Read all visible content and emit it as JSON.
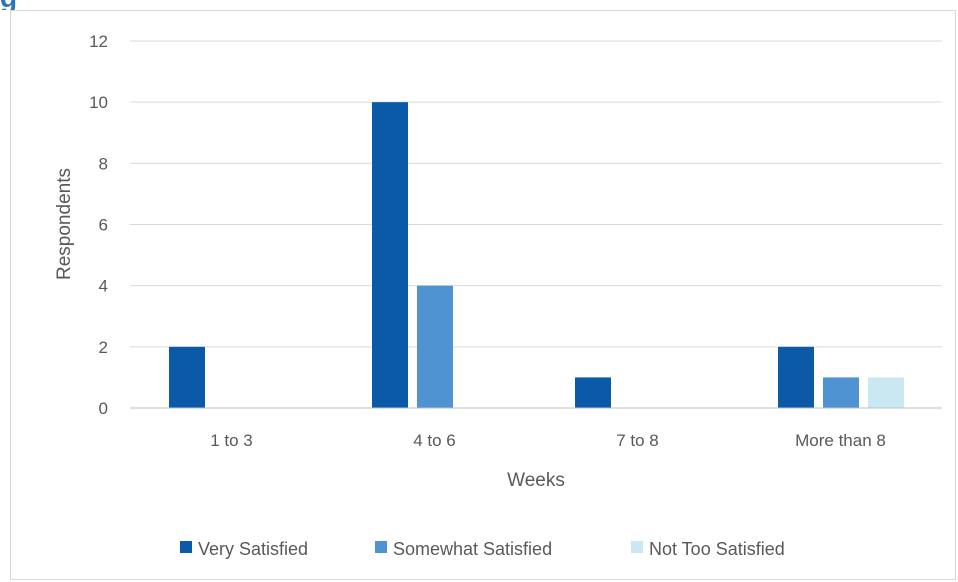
{
  "chart_data": {
    "type": "bar",
    "title": "",
    "xlabel": "Weeks",
    "ylabel": "Respondents",
    "ylim": [
      0,
      12
    ],
    "yticks": [
      0,
      2,
      4,
      6,
      8,
      10,
      12
    ],
    "grid": true,
    "legend_position": "bottom",
    "categories": [
      "1 to 3",
      "4 to 6",
      "7 to 8",
      "More than 8"
    ],
    "series": [
      {
        "name": "Very Satisfied",
        "color": "#0b5aa8",
        "values": [
          2,
          10,
          1,
          2
        ]
      },
      {
        "name": "Somewhat Satisfied",
        "color": "#4f93d2",
        "values": [
          0,
          4,
          0,
          1
        ]
      },
      {
        "name": "Not Too Satisfied",
        "color": "#c9e8f1",
        "values": [
          0,
          0,
          0,
          1
        ]
      }
    ]
  }
}
